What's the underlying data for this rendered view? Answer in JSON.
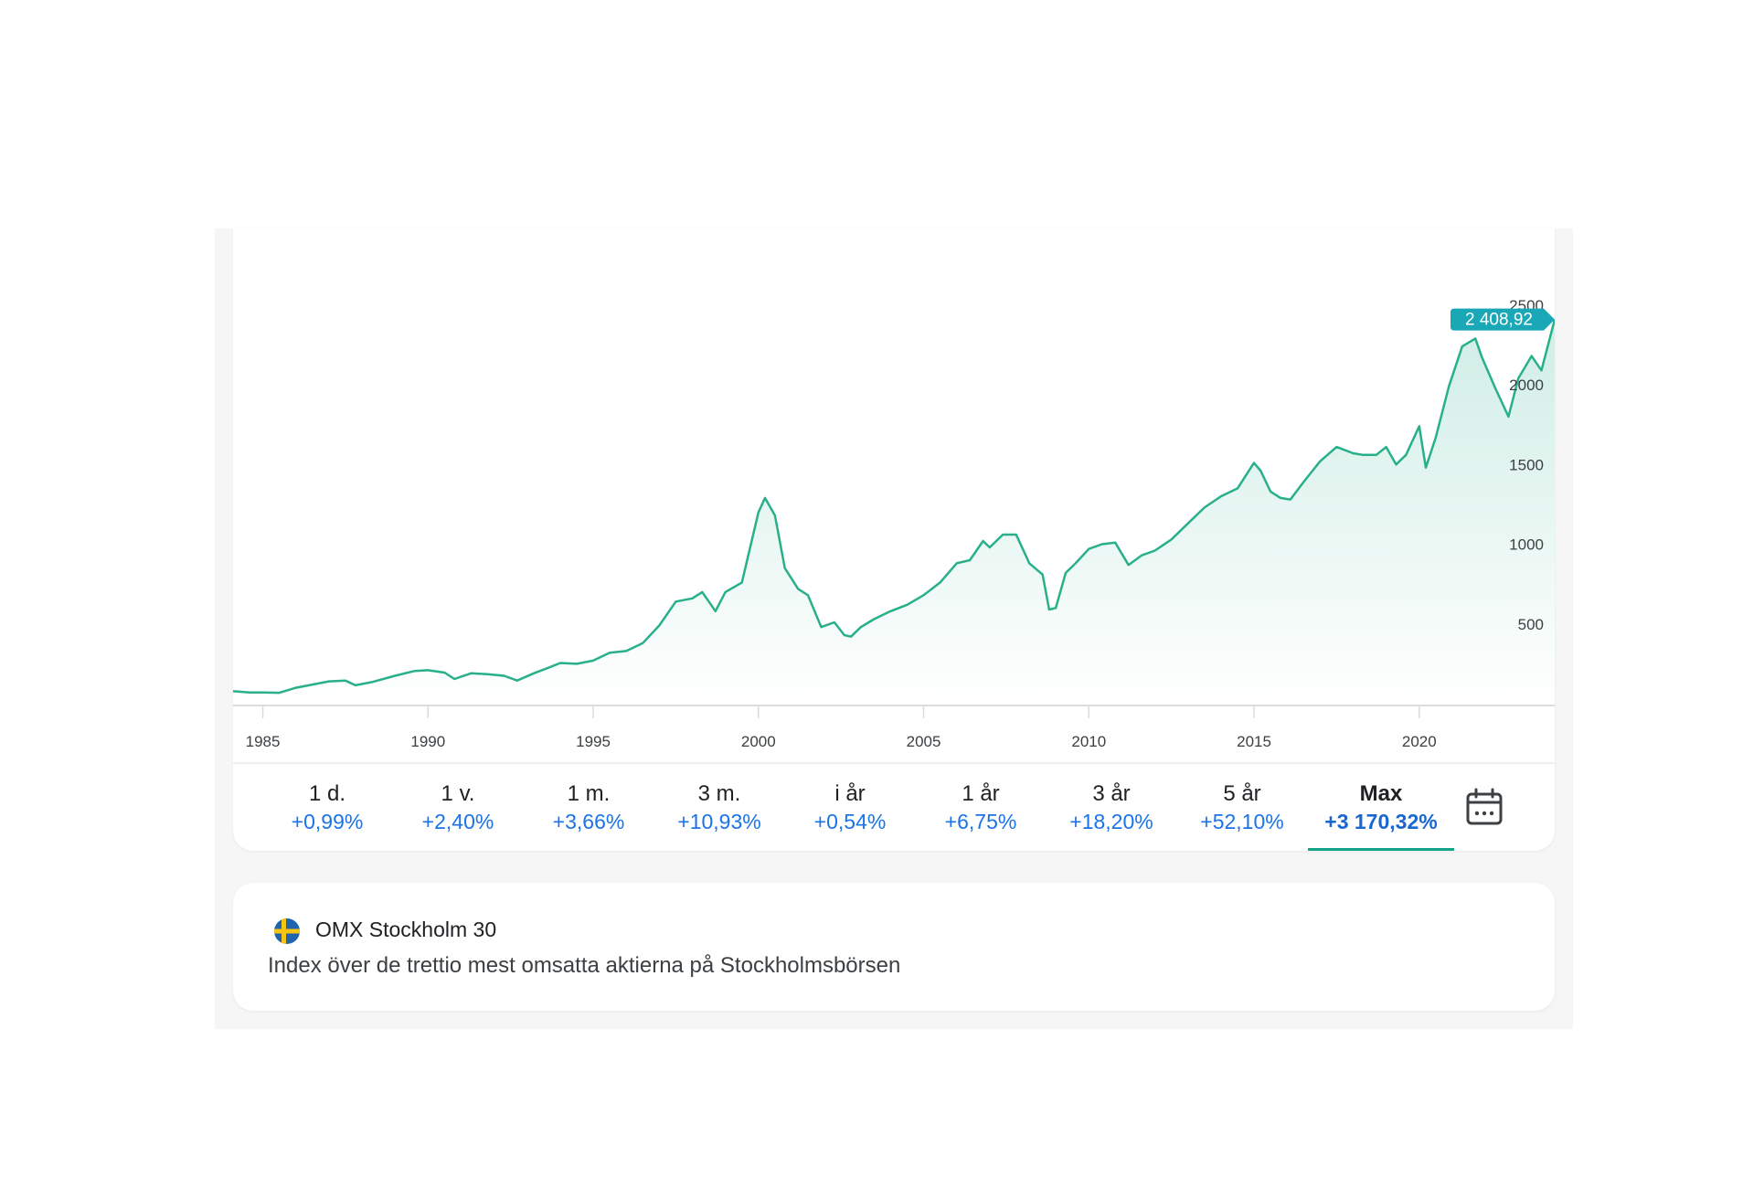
{
  "chart_data": {
    "type": "area",
    "title": "",
    "xlabel": "",
    "ylabel": "",
    "line_color": "#28b08a",
    "badge_color": "#1aa8b6",
    "x_ticks": [
      "1985",
      "1990",
      "1995",
      "2000",
      "2005",
      "2010",
      "2015",
      "2020"
    ],
    "y_ticks": [
      "2500",
      "2000",
      "1500",
      "1000",
      "500"
    ],
    "xlim": [
      1984.1,
      2024.1
    ],
    "ylim": [
      0,
      2600
    ],
    "last_value_label": "2 408,92",
    "series": [
      {
        "x": [
          1984.1,
          1984.6,
          1985.0,
          1985.5,
          1986.0,
          1986.5,
          1987.0,
          1987.5,
          1987.8,
          1988.3,
          1989.0,
          1989.6,
          1990.0,
          1990.5,
          1990.8,
          1991.3,
          1991.8,
          1992.3,
          1992.7,
          1993.2,
          1993.7,
          1994.0,
          1994.5,
          1995.0,
          1995.5,
          1996.0,
          1996.5,
          1997.0,
          1997.5,
          1998.0,
          1998.3,
          1998.7,
          1999.0,
          1999.5,
          2000.0,
          2000.2,
          2000.5,
          2000.8,
          2001.2,
          2001.5,
          2001.9,
          2002.3,
          2002.6,
          2002.8,
          2003.1,
          2003.5,
          2004.0,
          2004.5,
          2005.0,
          2005.5,
          2006.0,
          2006.4,
          2006.8,
          2007.0,
          2007.4,
          2007.8,
          2008.2,
          2008.6,
          2008.8,
          2009.0,
          2009.3,
          2009.6,
          2010.0,
          2010.4,
          2010.8,
          2011.2,
          2011.6,
          2012.0,
          2012.5,
          2013.0,
          2013.5,
          2014.0,
          2014.5,
          2015.0,
          2015.2,
          2015.5,
          2015.8,
          2016.1,
          2016.5,
          2017.0,
          2017.5,
          2018.0,
          2018.3,
          2018.7,
          2019.0,
          2019.3,
          2019.6,
          2020.0,
          2020.2,
          2020.5,
          2020.9,
          2021.3,
          2021.7,
          2021.9,
          2022.3,
          2022.7,
          2023.0,
          2023.4,
          2023.7,
          2024.1
        ],
        "y": [
          78,
          70,
          70,
          68,
          100,
          120,
          140,
          145,
          115,
          135,
          175,
          205,
          210,
          195,
          155,
          190,
          185,
          175,
          145,
          190,
          230,
          255,
          250,
          270,
          320,
          330,
          380,
          490,
          640,
          660,
          700,
          580,
          700,
          760,
          1200,
          1290,
          1180,
          850,
          720,
          680,
          480,
          510,
          430,
          420,
          480,
          530,
          580,
          620,
          680,
          760,
          880,
          900,
          1020,
          980,
          1060,
          1060,
          880,
          810,
          590,
          600,
          820,
          880,
          970,
          1000,
          1010,
          870,
          930,
          960,
          1030,
          1130,
          1230,
          1300,
          1350,
          1510,
          1460,
          1330,
          1290,
          1280,
          1390,
          1520,
          1610,
          1570,
          1560,
          1560,
          1610,
          1500,
          1560,
          1740,
          1480,
          1670,
          1990,
          2240,
          2290,
          2170,
          1980,
          1800,
          2040,
          2180,
          2090,
          2408.92
        ]
      }
    ]
  },
  "range_tabs": [
    {
      "label": "1 d.",
      "change": "+0,99%"
    },
    {
      "label": "1 v.",
      "change": "+2,40%"
    },
    {
      "label": "1 m.",
      "change": "+3,66%"
    },
    {
      "label": "3 m.",
      "change": "+10,93%"
    },
    {
      "label": "i år",
      "change": "+0,54%"
    },
    {
      "label": "1 år",
      "change": "+6,75%"
    },
    {
      "label": "3 år",
      "change": "+18,20%"
    },
    {
      "label": "5 år",
      "change": "+52,10%"
    },
    {
      "label": "Max",
      "change": "+3 170,32%",
      "active": true
    }
  ],
  "calendar_icon": "calendar-icon",
  "info": {
    "name": "OMX Stockholm 30",
    "description": "Index över de trettio mest omsatta aktierna på Stockholmsbörsen",
    "flag_icon": "sweden-flag-icon"
  }
}
